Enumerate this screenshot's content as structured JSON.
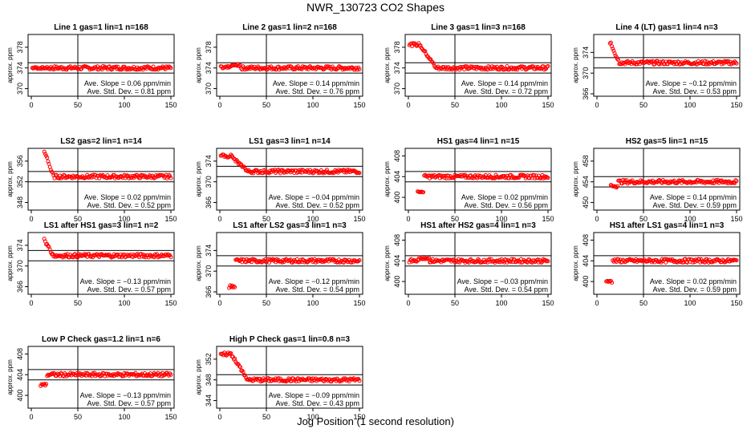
{
  "title": "NWR_130723  CO2 Shapes",
  "xlabel": "Jog Position (1 second resolution)",
  "ylabel": "approx. ppm",
  "slope_prefix": "Ave. Slope =",
  "slope_unit": "ppm/min",
  "std_prefix": "Ave. Std. Dev. =",
  "std_unit": "ppm",
  "colors": {
    "points": "#ff0000",
    "lines": "#000000"
  },
  "chart_data": [
    {
      "type": "scatter",
      "title": "Line 1 gas=1 lin=1 n=168",
      "xlim": [
        0,
        150
      ],
      "xticks": [
        0,
        50,
        100,
        150
      ],
      "ylim": [
        369,
        380
      ],
      "yticks": [
        370,
        374,
        378
      ],
      "hlines": [
        375.0,
        373.0
      ],
      "vline": 50,
      "base": 374.0,
      "pattern": "flat",
      "slope": "0.06",
      "std": "0.81"
    },
    {
      "type": "scatter",
      "title": "Line 2 gas=1 lin=2 n=168",
      "xlim": [
        0,
        150
      ],
      "xticks": [
        0,
        50,
        100,
        150
      ],
      "ylim": [
        369,
        380
      ],
      "yticks": [
        370,
        374,
        378
      ],
      "hlines": [
        375.0,
        373.0
      ],
      "vline": 50,
      "base": 374.0,
      "pattern": "bump",
      "slope": "0.14",
      "std": "0.76"
    },
    {
      "type": "scatter",
      "title": "Line 3 gas=1 lin=3 n=168",
      "xlim": [
        0,
        150
      ],
      "xticks": [
        0,
        50,
        100,
        150
      ],
      "ylim": [
        369,
        380
      ],
      "yticks": [
        370,
        374,
        378
      ],
      "hlines": [
        375.0,
        373.0
      ],
      "vline": 50,
      "base": 374.0,
      "pattern": "highstart",
      "start": 378.5,
      "slope": "0.14",
      "std": "0.72"
    },
    {
      "type": "scatter",
      "title": "Line 4 (LT) gas=1 lin=4 n=3",
      "xlim": [
        0,
        150
      ],
      "xticks": [
        0,
        50,
        100,
        150
      ],
      "ylim": [
        366,
        377
      ],
      "yticks": [
        366,
        370,
        374
      ],
      "hlines": [
        373.0,
        371.0
      ],
      "vline": 50,
      "base": 372.0,
      "pattern": "spike",
      "peak": 376.0,
      "slope": "−0.12",
      "std": "0.53"
    },
    {
      "type": "scatter",
      "title": "LS2 gas=2 lin=1 n=14",
      "xlim": [
        0,
        150
      ],
      "xticks": [
        0,
        50,
        100,
        150
      ],
      "ylim": [
        347,
        358
      ],
      "yticks": [
        348,
        352,
        356
      ],
      "hlines": [
        354.0,
        352.0
      ],
      "vline": 50,
      "base": 353.0,
      "pattern": "spike",
      "peak": 358.0,
      "slope": "0.02",
      "std": "0.52"
    },
    {
      "type": "scatter",
      "title": "LS1 gas=3 lin=1 n=14",
      "xlim": [
        0,
        150
      ],
      "xticks": [
        0,
        50,
        100,
        150
      ],
      "ylim": [
        365,
        376
      ],
      "yticks": [
        366,
        370,
        374
      ],
      "hlines": [
        373.0,
        371.0
      ],
      "vline": 50,
      "base": 372.0,
      "pattern": "highstart",
      "start": 375.0,
      "slope": "−0.04",
      "std": "0.52"
    },
    {
      "type": "scatter",
      "title": "HS1 gas=4 lin=1 n=15",
      "xlim": [
        0,
        150
      ],
      "xticks": [
        0,
        50,
        100,
        150
      ],
      "ylim": [
        398,
        409
      ],
      "yticks": [
        400,
        404,
        408
      ],
      "hlines": [
        405.0,
        403.0
      ],
      "vline": 50,
      "base": 404.0,
      "pattern": "lowstart",
      "low": 401.0,
      "slope": "0.02",
      "std": "0.56"
    },
    {
      "type": "scatter",
      "title": "HS2 gas=5 lin=1 n=15",
      "xlim": [
        0,
        150
      ],
      "xticks": [
        0,
        50,
        100,
        150
      ],
      "ylim": [
        449,
        460
      ],
      "yticks": [
        450,
        454,
        458
      ],
      "hlines": [
        455.0,
        453.0
      ],
      "vline": 50,
      "base": 454.0,
      "pattern": "dip",
      "slope": "0.14",
      "std": "0.59"
    },
    {
      "type": "scatter",
      "title": "LS1 after HS1 gas=3 lin=1 n=2",
      "xlim": [
        0,
        150
      ],
      "xticks": [
        0,
        50,
        100,
        150
      ],
      "ylim": [
        365,
        376
      ],
      "yticks": [
        366,
        370,
        374
      ],
      "hlines": [
        373.0,
        371.0
      ],
      "vline": 50,
      "base": 372.0,
      "pattern": "spike",
      "peak": 375.0,
      "slope": "−0.13",
      "std": "0.57"
    },
    {
      "type": "scatter",
      "title": "LS1 after LS2 gas=3 lin=1 n=3",
      "xlim": [
        0,
        150
      ],
      "xticks": [
        0,
        50,
        100,
        150
      ],
      "ylim": [
        366,
        377
      ],
      "yticks": [
        366,
        370,
        374
      ],
      "hlines": [
        373.0,
        371.0
      ],
      "vline": 50,
      "base": 372.0,
      "pattern": "lowstart",
      "low": 367.0,
      "slope": "−0.12",
      "std": "0.54"
    },
    {
      "type": "scatter",
      "title": "HS1 after HS2 gas=4 lin=1 n=3",
      "xlim": [
        0,
        150
      ],
      "xticks": [
        0,
        50,
        100,
        150
      ],
      "ylim": [
        398,
        409
      ],
      "yticks": [
        400,
        404,
        408
      ],
      "hlines": [
        405.0,
        403.0
      ],
      "vline": 50,
      "base": 404.0,
      "pattern": "bump",
      "slope": "−0.03",
      "std": "0.54"
    },
    {
      "type": "scatter",
      "title": "HS1 after LS1 gas=4 lin=1 n=3",
      "xlim": [
        0,
        150
      ],
      "xticks": [
        0,
        50,
        100,
        150
      ],
      "ylim": [
        398,
        409
      ],
      "yticks": [
        400,
        404,
        408
      ],
      "hlines": [
        405.0,
        403.0
      ],
      "vline": 50,
      "base": 404.0,
      "pattern": "lowstart",
      "low": 400.0,
      "slope": "0.02",
      "std": "0.59"
    },
    {
      "type": "scatter",
      "title": "Low P Check gas=1.2 lin=1 n=6",
      "xlim": [
        0,
        150
      ],
      "xticks": [
        0,
        50,
        100,
        150
      ],
      "ylim": [
        398,
        409
      ],
      "yticks": [
        400,
        404,
        408
      ],
      "hlines": [
        405.0,
        403.0
      ],
      "vline": 50,
      "base": 404.0,
      "pattern": "lowstart",
      "low": 402.0,
      "slope": "−0.13",
      "std": "0.57"
    },
    {
      "type": "scatter",
      "title": "High P Check gas=1 lin=0.8 n=3",
      "xlim": [
        0,
        150
      ],
      "xticks": [
        0,
        50,
        100,
        150
      ],
      "ylim": [
        343,
        354
      ],
      "yticks": [
        344,
        348,
        352
      ],
      "hlines": [
        349.0,
        347.0
      ],
      "vline": 50,
      "base": 348.0,
      "pattern": "highstart",
      "start": 353.0,
      "slope": "−0.09",
      "std": "0.43"
    }
  ]
}
